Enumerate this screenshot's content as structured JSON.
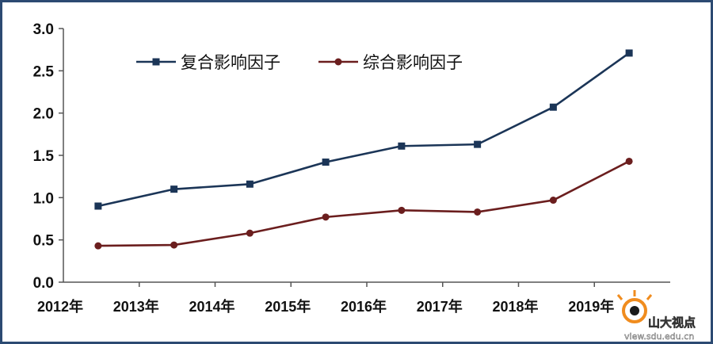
{
  "chart_data": {
    "type": "line",
    "categories": [
      "2012年",
      "2013年",
      "2014年",
      "2015年",
      "2016年",
      "2017年",
      "2018年",
      "2019年"
    ],
    "series": [
      {
        "name": "复合影响因子",
        "values": [
          0.9,
          1.1,
          1.16,
          1.42,
          1.61,
          1.63,
          2.07,
          2.71
        ],
        "color": "#1b3557",
        "marker": "square"
      },
      {
        "name": "综合影响因子",
        "values": [
          0.43,
          0.44,
          0.58,
          0.77,
          0.85,
          0.83,
          0.97,
          1.43
        ],
        "color": "#6b1e1e",
        "marker": "circle"
      }
    ],
    "y_ticks": [
      "0.0",
      "0.5",
      "1.0",
      "1.5",
      "2.0",
      "2.5",
      "3.0"
    ],
    "ylim": [
      0,
      3.0
    ],
    "grid": false,
    "legend_position": "top-center",
    "title": "",
    "xlabel": "",
    "ylabel": ""
  },
  "watermark": {
    "logo_text": "山大视点",
    "url_text": "view.sdu.edu.cn"
  }
}
